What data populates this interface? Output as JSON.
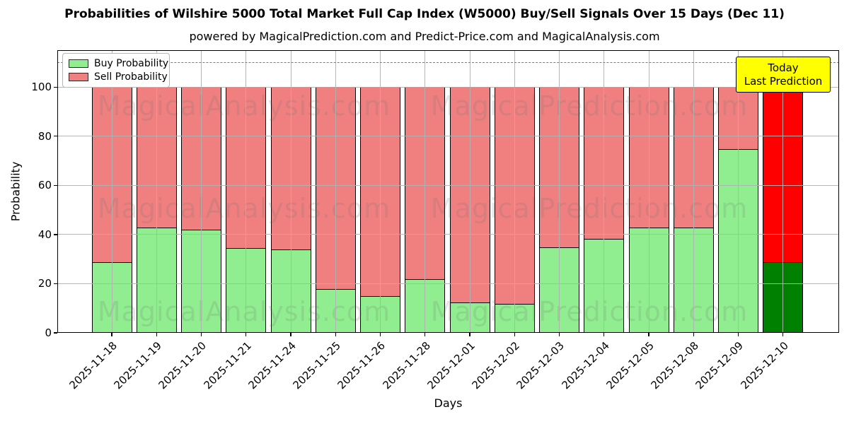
{
  "header": {
    "title": "Probabilities of Wilshire 5000 Total Market Full Cap Index (W5000) Buy/Sell Signals Over 15 Days (Dec 11)",
    "subtitle": "powered by MagicalPrediction.com and Predict-Price.com and MagicalAnalysis.com"
  },
  "chart_data": {
    "type": "bar",
    "stacked": true,
    "title": "Probabilities of Wilshire 5000 Total Market Full Cap Index (W5000) Buy/Sell Signals Over 15 Days (Dec 11)",
    "xlabel": "Days",
    "ylabel": "Probability",
    "categories": [
      "2025-11-18",
      "2025-11-19",
      "2025-11-20",
      "2025-11-21",
      "2025-11-24",
      "2025-11-25",
      "2025-11-26",
      "2025-11-28",
      "2025-12-01",
      "2025-12-02",
      "2025-12-03",
      "2025-12-04",
      "2025-12-05",
      "2025-12-08",
      "2025-12-09",
      "2025-12-10"
    ],
    "series": [
      {
        "name": "Buy Probability",
        "color": "#90ee90",
        "last_bar_color": "#008000",
        "values": [
          29,
          43,
          42,
          34.5,
          34,
          18,
          15,
          22,
          12.5,
          12,
          35,
          38.5,
          43,
          43,
          75,
          29
        ]
      },
      {
        "name": "Sell Probability",
        "color": "#f08080",
        "last_bar_color": "#ff0000",
        "values": [
          71,
          57,
          58,
          65.5,
          66,
          82,
          85,
          78,
          87.5,
          88,
          65,
          61.5,
          57,
          57,
          25,
          71
        ]
      }
    ],
    "y_ticks": [
      0,
      20,
      40,
      60,
      80,
      100
    ],
    "ylim": [
      0,
      115
    ],
    "dashed_line_y": 110,
    "dashed_line_color": "#7b7b7b",
    "grid": true,
    "legend_position": "upper left"
  },
  "legend": {
    "buy_label": "Buy Probability",
    "sell_label": "Sell Probability"
  },
  "annotation_box": {
    "line1": "Today",
    "line2": "Last Prediction",
    "bg_color": "#ffff00"
  },
  "watermarks": {
    "left_text": "MagicalAnalysis.com",
    "right_text": "MagicalPrediction.com"
  }
}
